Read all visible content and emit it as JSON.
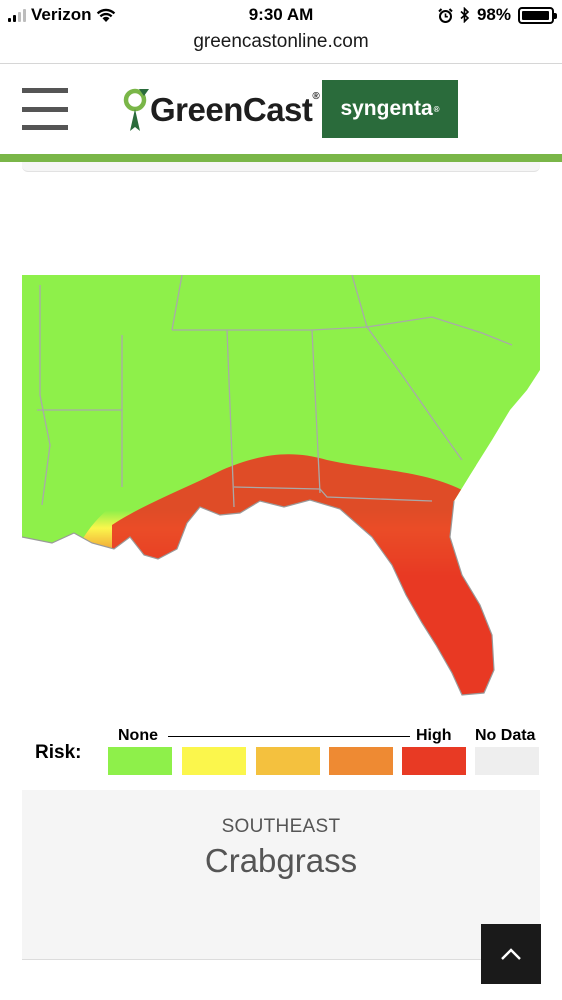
{
  "status_bar": {
    "carrier": "Verizon",
    "time": "9:30 AM",
    "battery_percent": "98%",
    "battery_level": 0.98,
    "icons": [
      "signal-icon",
      "wifi-icon",
      "alarm-icon",
      "bluetooth-icon",
      "battery-icon"
    ]
  },
  "browser": {
    "url": "greencastonline.com"
  },
  "header": {
    "menu_icon": "hamburger-menu-icon",
    "brand": "GreenCast",
    "brand_mark": "®",
    "partner": "syngenta",
    "partner_mark": "®",
    "accent_color": "#7ab648",
    "partner_color": "#2a6b3b"
  },
  "legend": {
    "title": "Risk:",
    "low_label": "None",
    "high_label": "High",
    "no_data_label": "No Data",
    "colors": [
      "#8ef04a",
      "#fbf64c",
      "#f4c13e",
      "#ee8a33",
      "#e83a24",
      "#eeeeee"
    ]
  },
  "card": {
    "region": "SOUTHEAST",
    "pest": "Crabgrass"
  },
  "back_to_top_icon": "chevron-up-icon"
}
